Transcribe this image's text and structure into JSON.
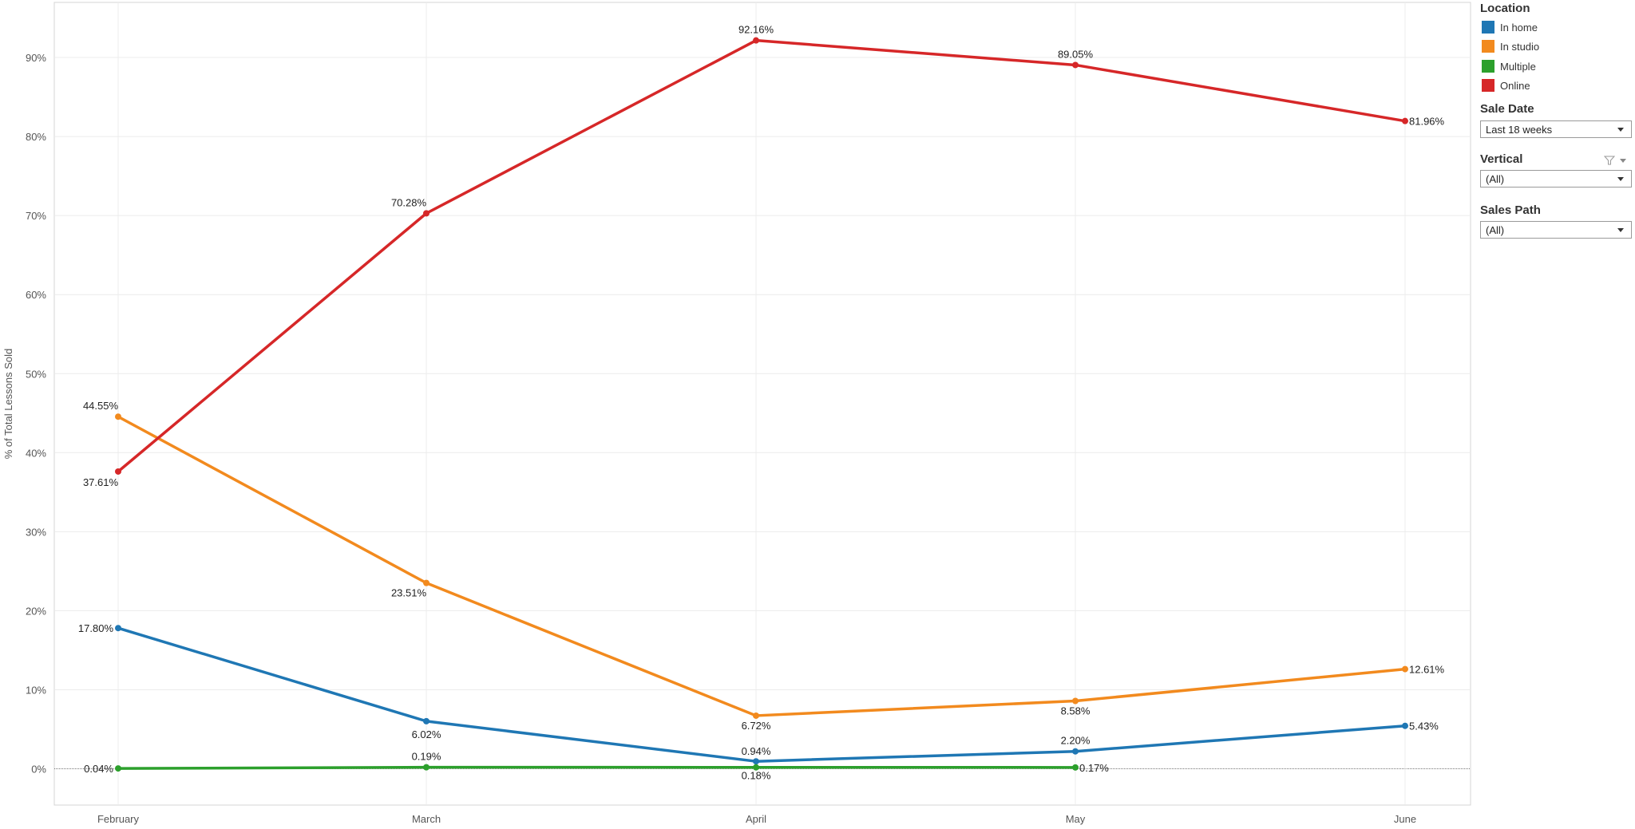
{
  "chart_data": {
    "type": "line",
    "categories": [
      "February",
      "March",
      "April",
      "May",
      "June"
    ],
    "ylabel": "% of Total Lessons Sold",
    "ylim": [
      -5,
      97
    ],
    "yticks": [
      0,
      10,
      20,
      30,
      40,
      50,
      60,
      70,
      80,
      90
    ],
    "ytick_labels": [
      "0%",
      "10%",
      "20%",
      "30%",
      "40%",
      "50%",
      "60%",
      "70%",
      "80%",
      "90%"
    ],
    "grid": true,
    "legend_position": "right",
    "series": [
      {
        "name": "In home",
        "color": "#1f77b4",
        "values": [
          17.8,
          6.02,
          0.94,
          2.2,
          5.43
        ],
        "labels": [
          "17.80%",
          "6.02%",
          "0.94%",
          "2.20%",
          "5.43%"
        ]
      },
      {
        "name": "In studio",
        "color": "#f28a1e",
        "values": [
          44.55,
          23.51,
          6.72,
          8.58,
          12.61
        ],
        "labels": [
          "44.55%",
          "23.51%",
          "6.72%",
          "8.58%",
          "12.61%"
        ]
      },
      {
        "name": "Multiple",
        "color": "#2ca02c",
        "values": [
          0.04,
          0.19,
          0.18,
          0.17,
          null
        ],
        "labels": [
          "0.04%",
          "0.19%",
          "0.18%",
          "0.17%",
          null
        ]
      },
      {
        "name": "Online",
        "color": "#d62728",
        "values": [
          37.61,
          70.28,
          92.16,
          89.05,
          81.96
        ],
        "labels": [
          "37.61%",
          "70.28%",
          "92.16%",
          "89.05%",
          "81.96%"
        ]
      }
    ]
  },
  "panel": {
    "legend_title": "Location",
    "legend_items": [
      {
        "label": "In home",
        "color": "#1f77b4"
      },
      {
        "label": "In studio",
        "color": "#f28a1e"
      },
      {
        "label": "Multiple",
        "color": "#2ca02c"
      },
      {
        "label": "Online",
        "color": "#d62728"
      }
    ],
    "filters": [
      {
        "title": "Sale Date",
        "value": "Last 18 weeks",
        "has_filter_icon": false
      },
      {
        "title": "Vertical",
        "value": "(All)",
        "has_filter_icon": true
      },
      {
        "title": "Sales Path",
        "value": "(All)",
        "has_filter_icon": false
      }
    ]
  }
}
